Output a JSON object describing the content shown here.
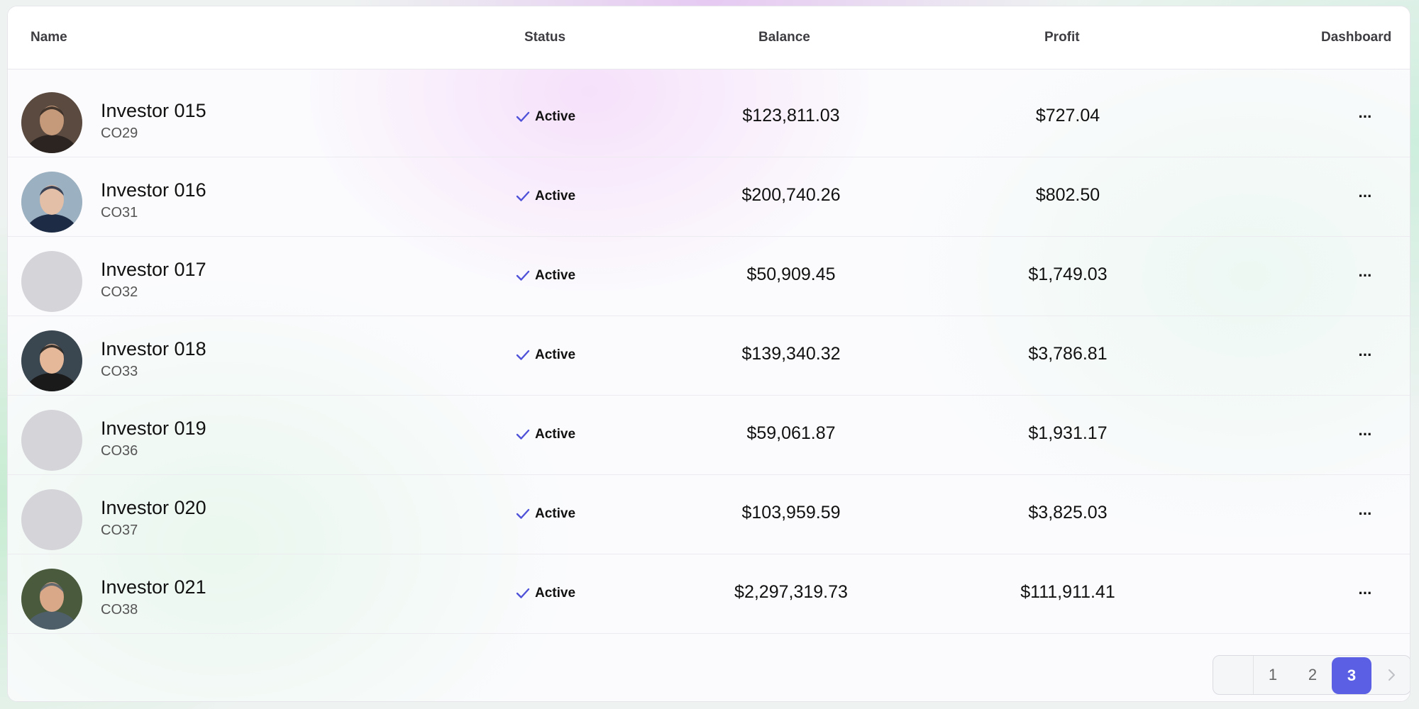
{
  "table": {
    "headers": {
      "name": "Name",
      "status": "Status",
      "balance": "Balance",
      "profit": "Profit",
      "dashboard": "Dashboard"
    },
    "rows": [
      {
        "name": "Investor 015",
        "code": "CO29",
        "status": "Active",
        "balance": "$123,811.03",
        "profit": "$727.04",
        "menu": "···",
        "avatar": "photo"
      },
      {
        "name": "Investor 016",
        "code": "CO31",
        "status": "Active",
        "balance": "$200,740.26",
        "profit": "$802.50",
        "menu": "···",
        "avatar": "photo"
      },
      {
        "name": "Investor 017",
        "code": "CO32",
        "status": "Active",
        "balance": "$50,909.45",
        "profit": "$1,749.03",
        "menu": "···",
        "avatar": "placeholder"
      },
      {
        "name": "Investor 018",
        "code": "CO33",
        "status": "Active",
        "balance": "$139,340.32",
        "profit": "$3,786.81",
        "menu": "···",
        "avatar": "photo"
      },
      {
        "name": "Investor 019",
        "code": "CO36",
        "status": "Active",
        "balance": "$59,061.87",
        "profit": "$1,931.17",
        "menu": "···",
        "avatar": "placeholder"
      },
      {
        "name": "Investor 020",
        "code": "CO37",
        "status": "Active",
        "balance": "$103,959.59",
        "profit": "$3,825.03",
        "menu": "···",
        "avatar": "placeholder"
      },
      {
        "name": "Investor 021",
        "code": "CO38",
        "status": "Active",
        "balance": "$2,297,319.73",
        "profit": "$111,911.41",
        "menu": "···",
        "avatar": "photo"
      }
    ]
  },
  "pagination": {
    "pages": [
      "1",
      "2",
      "3"
    ],
    "current": "3",
    "prev_icon": "chevron-left-icon",
    "next_icon": "chevron-right-icon"
  },
  "icons": {
    "status": "check-icon",
    "menu": "more-horizontal-icon"
  },
  "colors": {
    "accent": "#5b5fe3",
    "check": "#4f52d9",
    "placeholder_avatar": "#d5d4d9"
  }
}
